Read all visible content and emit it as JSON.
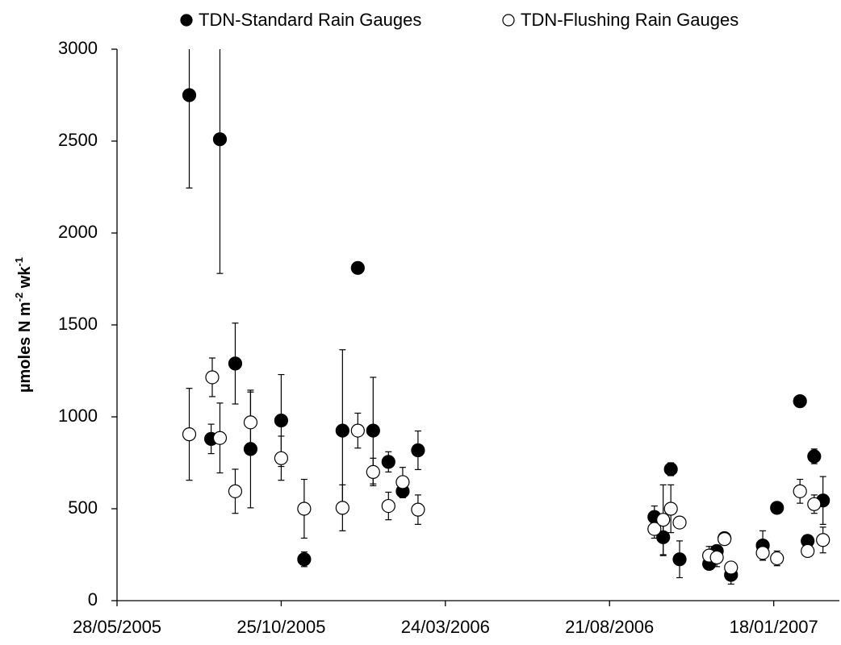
{
  "chart_data": {
    "type": "scatter",
    "ylabel": [
      "µmoles N m",
      "-2",
      " wk",
      "-1"
    ],
    "xlim": [
      "28/05/2005",
      "19/03/2007"
    ],
    "xticks": [
      "28/05/2005",
      "25/10/2005",
      "24/03/2006",
      "21/08/2006",
      "18/01/2007"
    ],
    "ylim": [
      0,
      3000
    ],
    "yticks": [
      0,
      500,
      1000,
      1500,
      2000,
      2500,
      3000
    ],
    "series": [
      {
        "name": "TDN-Standard Rain Gauges",
        "color": "#000000",
        "x": [
          "02/08/2005",
          "30/08/2005",
          "22/08/2005",
          "13/09/2005",
          "27/09/2005",
          "25/10/2005",
          "15/11/2005",
          "20/12/2005",
          "03/01/2006",
          "17/01/2006",
          "31/01/2006",
          "13/02/2006",
          "27/02/2006",
          "01/10/2006",
          "09/10/2006",
          "16/10/2006",
          "24/10/2006",
          "20/11/2006",
          "27/11/2006",
          "04/12/2006",
          "10/12/2006",
          "08/01/2007",
          "21/01/2007",
          "11/02/2007",
          "18/02/2007",
          "24/02/2007",
          "04/03/2007"
        ],
        "values": [
          2750,
          2510,
          880,
          1290,
          825,
          980,
          225,
          925,
          1810,
          925,
          755,
          595,
          818,
          455,
          345,
          715,
          225,
          200,
          270,
          340,
          140,
          300,
          505,
          1085,
          325,
          785,
          545
        ],
        "errors": [
          505,
          730,
          80,
          220,
          320,
          250,
          40,
          440,
          null,
          290,
          55,
          35,
          105,
          60,
          100,
          35,
          100,
          20,
          25,
          20,
          50,
          80,
          null,
          25,
          20,
          40,
          130
        ]
      },
      {
        "name": "TDN-Flushing Rain Gauges",
        "color": "#ffffff",
        "x": [
          "02/08/2005",
          "23/08/2005",
          "30/08/2005",
          "13/09/2005",
          "27/09/2005",
          "25/10/2005",
          "15/11/2005",
          "20/12/2005",
          "03/01/2006",
          "17/01/2006",
          "31/01/2006",
          "13/02/2006",
          "27/02/2006",
          "01/10/2006",
          "09/10/2006",
          "16/10/2006",
          "24/10/2006",
          "20/11/2006",
          "27/11/2006",
          "04/12/2006",
          "10/12/2006",
          "08/01/2007",
          "21/01/2007",
          "11/02/2007",
          "18/02/2007",
          "24/02/2007",
          "04/03/2007"
        ],
        "values": [
          905,
          1215,
          885,
          595,
          970,
          775,
          500,
          505,
          925,
          700,
          515,
          645,
          495,
          390,
          440,
          500,
          425,
          245,
          235,
          335,
          180,
          260,
          230,
          595,
          270,
          525,
          330
        ],
        "errors": [
          250,
          105,
          190,
          120,
          165,
          120,
          160,
          125,
          95,
          75,
          75,
          80,
          80,
          50,
          190,
          130,
          null,
          50,
          50,
          30,
          30,
          40,
          40,
          65,
          20,
          50,
          70
        ]
      }
    ]
  }
}
